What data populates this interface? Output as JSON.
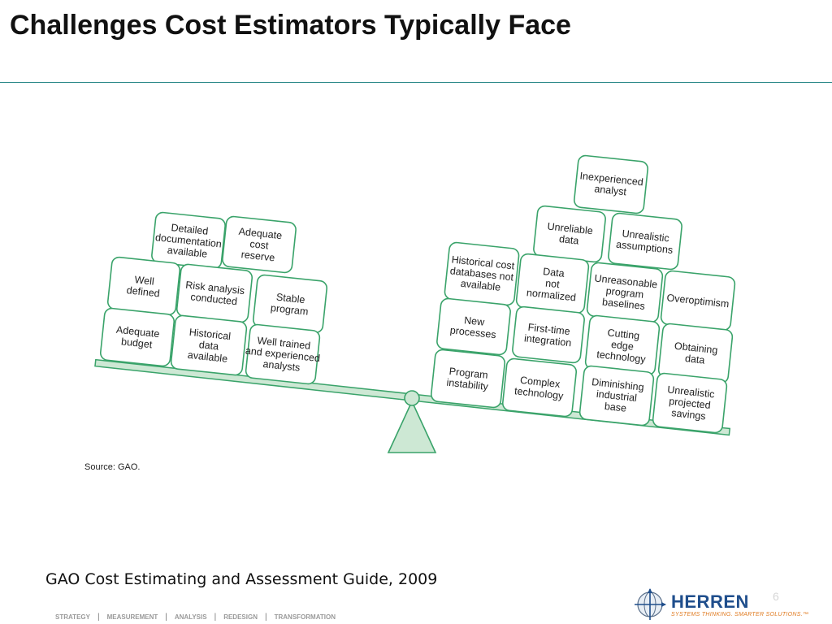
{
  "slide": {
    "title": "Challenges Cost Estimators Typically Face",
    "caption": "GAO Cost Estimating and Assessment Guide, 2009",
    "page_number": "6"
  },
  "diagram": {
    "source": "Source: GAO.",
    "left_pan": [
      [
        "Detailed",
        "documentation",
        "available"
      ],
      [
        "Adequate",
        "cost",
        "reserve"
      ],
      [
        "Well",
        "defined"
      ],
      [
        "Risk analysis",
        "conducted"
      ],
      [
        "Stable",
        "program"
      ],
      [
        "Adequate",
        "budget"
      ],
      [
        "Historical",
        "data",
        "available"
      ],
      [
        "Well trained",
        "and experienced",
        "analysts"
      ]
    ],
    "right_pan": [
      [
        "Inexperienced",
        "analyst"
      ],
      [
        "Unreliable",
        "data"
      ],
      [
        "Unrealistic",
        "assumptions"
      ],
      [
        "Historical cost",
        "databases not",
        "available"
      ],
      [
        "Data",
        "not",
        "normalized"
      ],
      [
        "Unreasonable",
        "program",
        "baselines"
      ],
      [
        "Overoptimism"
      ],
      [
        "New",
        "processes"
      ],
      [
        "First-time",
        "integration"
      ],
      [
        "Cutting",
        "edge",
        "technology"
      ],
      [
        "Obtaining",
        "data"
      ],
      [
        "Program",
        "instability"
      ],
      [
        "Complex",
        "technology"
      ],
      [
        "Diminishing",
        "industrial",
        "base"
      ],
      [
        "Unrealistic",
        "projected",
        "savings"
      ]
    ]
  },
  "footer": {
    "nav": [
      "STRATEGY",
      "MEASUREMENT",
      "ANALYSIS",
      "REDESIGN",
      "TRANSFORMATION"
    ]
  },
  "logo": {
    "name": "HERREN",
    "tagline": "SYSTEMS THINKING. SMARTER SOLUTIONS.™"
  }
}
